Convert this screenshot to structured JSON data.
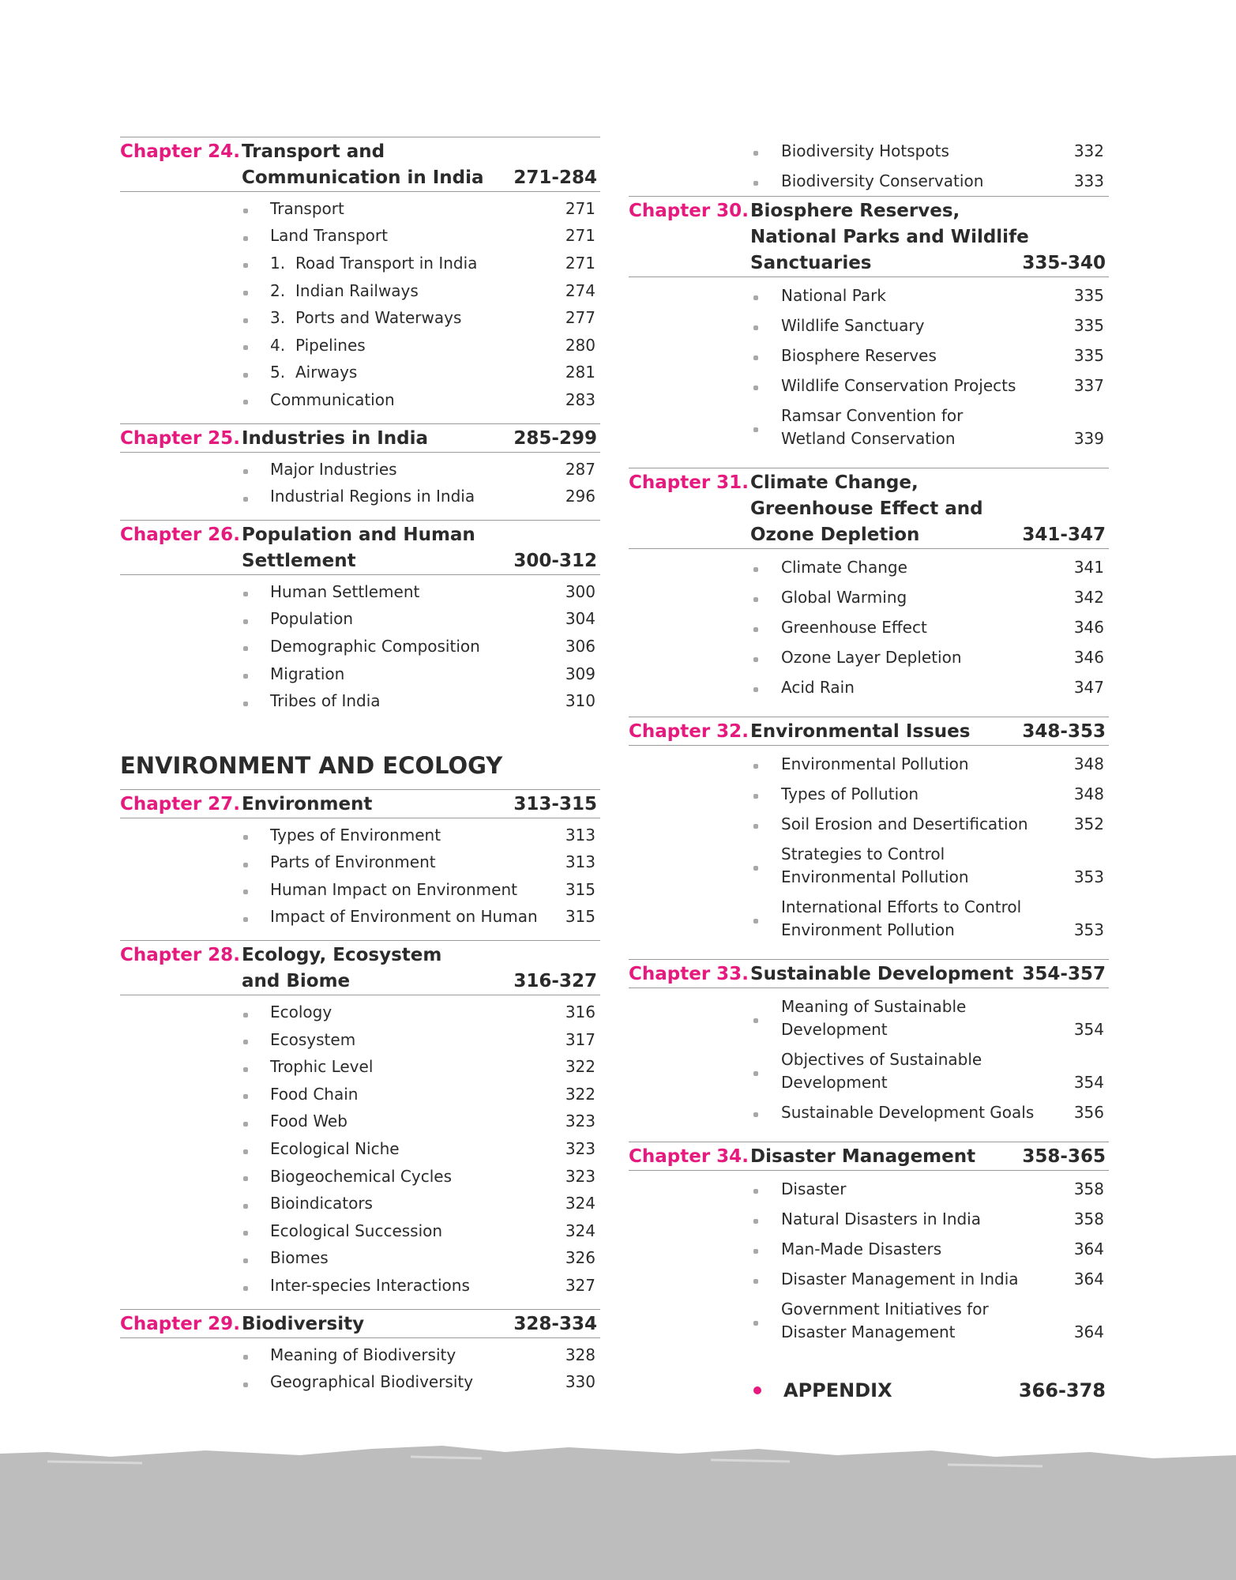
{
  "columns": [
    {
      "blocks": [
        {
          "label": "Chapter 24.",
          "title": [
            "Transport and",
            "Communication in India"
          ],
          "pages": "271-284",
          "items": [
            {
              "text": [
                "Transport"
              ],
              "page": 271
            },
            {
              "text": [
                "Land Transport"
              ],
              "page": 271
            },
            {
              "number": "1.",
              "text": [
                "Road Transport in India"
              ],
              "page": 271
            },
            {
              "number": "2.",
              "text": [
                "Indian Railways"
              ],
              "page": 274
            },
            {
              "number": "3.",
              "text": [
                "Ports and Waterways"
              ],
              "page": 277
            },
            {
              "number": "4.",
              "text": [
                "Pipelines"
              ],
              "page": 280
            },
            {
              "number": "5.",
              "text": [
                "Airways"
              ],
              "page": 281
            },
            {
              "text": [
                "Communication"
              ],
              "page": 283
            }
          ]
        },
        {
          "label": "Chapter 25.",
          "title": [
            "Industries in India"
          ],
          "pages": "285-299",
          "items": [
            {
              "text": [
                "Major Industries"
              ],
              "page": 287
            },
            {
              "text": [
                "Industrial Regions in India"
              ],
              "page": 296
            }
          ]
        },
        {
          "label": "Chapter 26.",
          "title": [
            "Population and Human",
            "Settlement"
          ],
          "pages": "300-312",
          "items": [
            {
              "text": [
                "Human Settlement"
              ],
              "page": 300
            },
            {
              "text": [
                "Population"
              ],
              "page": 304
            },
            {
              "text": [
                "Demographic Composition"
              ],
              "page": 306
            },
            {
              "text": [
                "Migration"
              ],
              "page": 309
            },
            {
              "text": [
                "Tribes of India"
              ],
              "page": 310
            }
          ]
        },
        {
          "heading": "ENVIRONMENT AND ECOLOGY"
        },
        {
          "label": "Chapter 27.",
          "title": [
            "Environment"
          ],
          "pages": "313-315",
          "items": [
            {
              "text": [
                "Types of Environment"
              ],
              "page": 313
            },
            {
              "text": [
                "Parts of Environment"
              ],
              "page": 313
            },
            {
              "text": [
                "Human Impact on Environment"
              ],
              "page": 315
            },
            {
              "text": [
                "Impact of Environment on Human"
              ],
              "page": 315
            }
          ]
        },
        {
          "label": "Chapter 28.",
          "title": [
            "Ecology, Ecosystem",
            "and Biome"
          ],
          "pages": "316-327",
          "items": [
            {
              "text": [
                "Ecology"
              ],
              "page": 316
            },
            {
              "text": [
                "Ecosystem"
              ],
              "page": 317
            },
            {
              "text": [
                "Trophic Level"
              ],
              "page": 322
            },
            {
              "text": [
                "Food Chain"
              ],
              "page": 322
            },
            {
              "text": [
                "Food Web"
              ],
              "page": 323
            },
            {
              "text": [
                "Ecological Niche"
              ],
              "page": 323
            },
            {
              "text": [
                "Biogeochemical Cycles"
              ],
              "page": 323
            },
            {
              "text": [
                "Bioindicators"
              ],
              "page": 324
            },
            {
              "text": [
                "Ecological Succession"
              ],
              "page": 324
            },
            {
              "text": [
                "Biomes"
              ],
              "page": 326
            },
            {
              "text": [
                "Inter-species Interactions"
              ],
              "page": 327
            }
          ]
        },
        {
          "label": "Chapter 29.",
          "title": [
            "Biodiversity"
          ],
          "pages": "328-334",
          "items": [
            {
              "text": [
                "Meaning of Biodiversity"
              ],
              "page": 328
            },
            {
              "text": [
                "Geographical Biodiversity"
              ],
              "page": 330
            }
          ]
        }
      ]
    },
    {
      "blocks": [
        {
          "items": [
            {
              "text": [
                "Biodiversity Hotspots"
              ],
              "page": 332
            },
            {
              "text": [
                "Biodiversity Conservation"
              ],
              "page": 333
            }
          ]
        },
        {
          "label": "Chapter 30.",
          "title": [
            "Biosphere Reserves,",
            "National Parks and Wildlife",
            "Sanctuaries"
          ],
          "pages": "335-340",
          "items": [
            {
              "text": [
                "National Park"
              ],
              "page": 335
            },
            {
              "text": [
                "Wildlife Sanctuary"
              ],
              "page": 335
            },
            {
              "text": [
                "Biosphere Reserves"
              ],
              "page": 335
            },
            {
              "text": [
                "Wildlife Conservation Projects"
              ],
              "page": 337
            },
            {
              "text": [
                "Ramsar Convention for",
                "Wetland Conservation"
              ],
              "page": 339
            }
          ]
        },
        {
          "label": "Chapter 31.",
          "title": [
            "Climate Change,",
            "Greenhouse Effect and",
            "Ozone Depletion"
          ],
          "pages": "341-347",
          "items": [
            {
              "text": [
                "Climate Change"
              ],
              "page": 341
            },
            {
              "text": [
                "Global Warming"
              ],
              "page": 342
            },
            {
              "text": [
                "Greenhouse Effect"
              ],
              "page": 346
            },
            {
              "text": [
                "Ozone Layer Depletion"
              ],
              "page": 346
            },
            {
              "text": [
                "Acid Rain"
              ],
              "page": 347
            }
          ]
        },
        {
          "label": "Chapter 32.",
          "title": [
            "Environmental Issues"
          ],
          "pages": "348-353",
          "items": [
            {
              "text": [
                "Environmental Pollution"
              ],
              "page": 348
            },
            {
              "text": [
                "Types of Pollution"
              ],
              "page": 348
            },
            {
              "text": [
                "Soil Erosion and Desertification"
              ],
              "page": 352
            },
            {
              "text": [
                "Strategies to Control",
                "Environmental Pollution"
              ],
              "page": 353
            },
            {
              "text": [
                "International Efforts to Control",
                "Environment Pollution"
              ],
              "page": 353
            }
          ]
        },
        {
          "label": "Chapter 33.",
          "title": [
            "Sustainable Development"
          ],
          "pages": "354-357",
          "items": [
            {
              "text": [
                "Meaning of Sustainable",
                "Development"
              ],
              "page": 354
            },
            {
              "text": [
                "Objectives of Sustainable",
                "Development"
              ],
              "page": 354
            },
            {
              "text": [
                "Sustainable Development Goals"
              ],
              "page": 356
            }
          ]
        },
        {
          "label": "Chapter 34.",
          "title": [
            "Disaster Management"
          ],
          "pages": "358-365",
          "items": [
            {
              "text": [
                "Disaster"
              ],
              "page": 358
            },
            {
              "text": [
                "Natural Disasters in India"
              ],
              "page": 358
            },
            {
              "text": [
                "Man-Made Disasters"
              ],
              "page": 364
            },
            {
              "text": [
                "Disaster Management in India"
              ],
              "page": 364
            },
            {
              "text": [
                "Government Initiatives for",
                "Disaster Management"
              ],
              "page": 364
            }
          ]
        },
        {
          "appendix": "APPENDIX",
          "pages": "366-378"
        }
      ]
    }
  ]
}
